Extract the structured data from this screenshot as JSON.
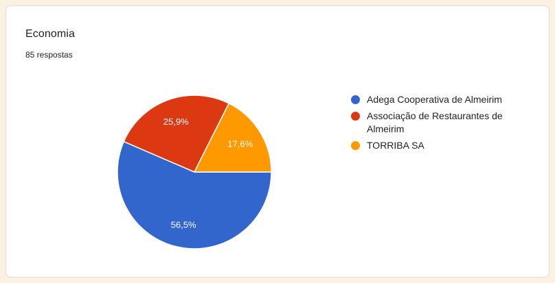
{
  "page": {
    "background_color": "#FAF1E3"
  },
  "card": {
    "title": "Economia",
    "subtitle": "85 respostas",
    "background_color": "#FFFFFF",
    "border_color": "#DADCE0"
  },
  "chart_data": {
    "type": "pie",
    "title": "Economia",
    "subtitle": "85 respostas",
    "total_responses": 85,
    "legend_position": "right",
    "start_angle_deg": 0,
    "direction": "clockwise",
    "slice_label_color": "#FFFFFF",
    "slice_separator_color": "#FFFFFF",
    "series": [
      {
        "name": "Adega Cooperativa de Almeirim",
        "percent": 56.5,
        "label": "56,5%",
        "color": "#3366CC"
      },
      {
        "name": "Associação de Restaurantes de Almeirim",
        "percent": 25.9,
        "label": "25,9%",
        "color": "#DC3912"
      },
      {
        "name": "TORRIBA SA",
        "percent": 17.6,
        "label": "17,6%",
        "color": "#FF9900"
      }
    ]
  }
}
